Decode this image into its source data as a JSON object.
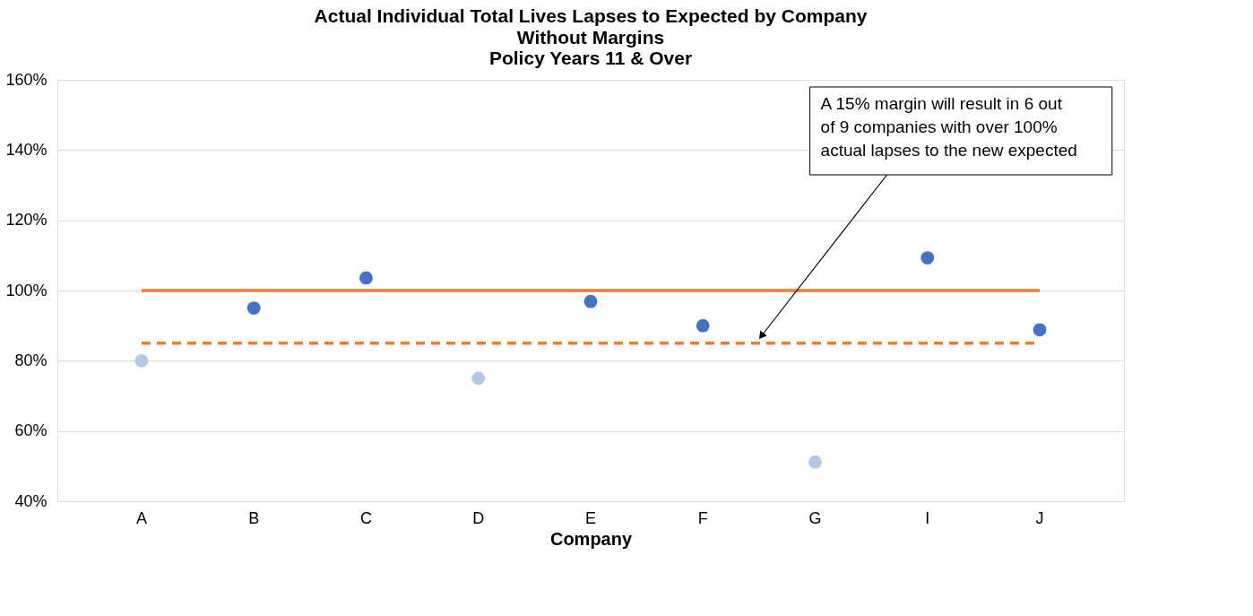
{
  "chart_data": {
    "type": "scatter",
    "title": "Actual Individual Total Lives Lapses to Expected by Company",
    "subtitle": "Without Margins\nPolicy Years 11 & Over",
    "xlabel": "Company",
    "categories": [
      "A",
      "B",
      "C",
      "D",
      "E",
      "F",
      "G",
      "I",
      "J"
    ],
    "values": [
      80,
      95,
      103.6,
      75,
      96.9,
      90,
      51.2,
      109.3,
      88.8
    ],
    "colors": [
      "#b4c7e7",
      "#4472c4",
      "#4472c4",
      "#b4c7e7",
      "#4472c4",
      "#4472c4",
      "#b4c7e7",
      "#4472c4",
      "#4472c4"
    ],
    "marker": "circle",
    "ylim": [
      40,
      160
    ],
    "yticks": [
      {
        "value": 40,
        "label": "40%"
      },
      {
        "value": 60,
        "label": "60%"
      },
      {
        "value": 80,
        "label": "80%"
      },
      {
        "value": 100,
        "label": "100%"
      },
      {
        "value": 120,
        "label": "120%"
      },
      {
        "value": 140,
        "label": "140%"
      },
      {
        "value": 160,
        "label": "160%"
      }
    ],
    "grid": "y",
    "ref_lines": [
      {
        "axis": "y",
        "value": 100,
        "color": "#ed7d31",
        "line_style": "solid"
      },
      {
        "axis": "y",
        "value": 85,
        "color": "#ed7d31",
        "line_style": "dashed"
      }
    ],
    "annotations": [
      "A 15% margin will result in 6 out\nof 9 companies with over 100%\nactual lapses to the new expected"
    ]
  }
}
